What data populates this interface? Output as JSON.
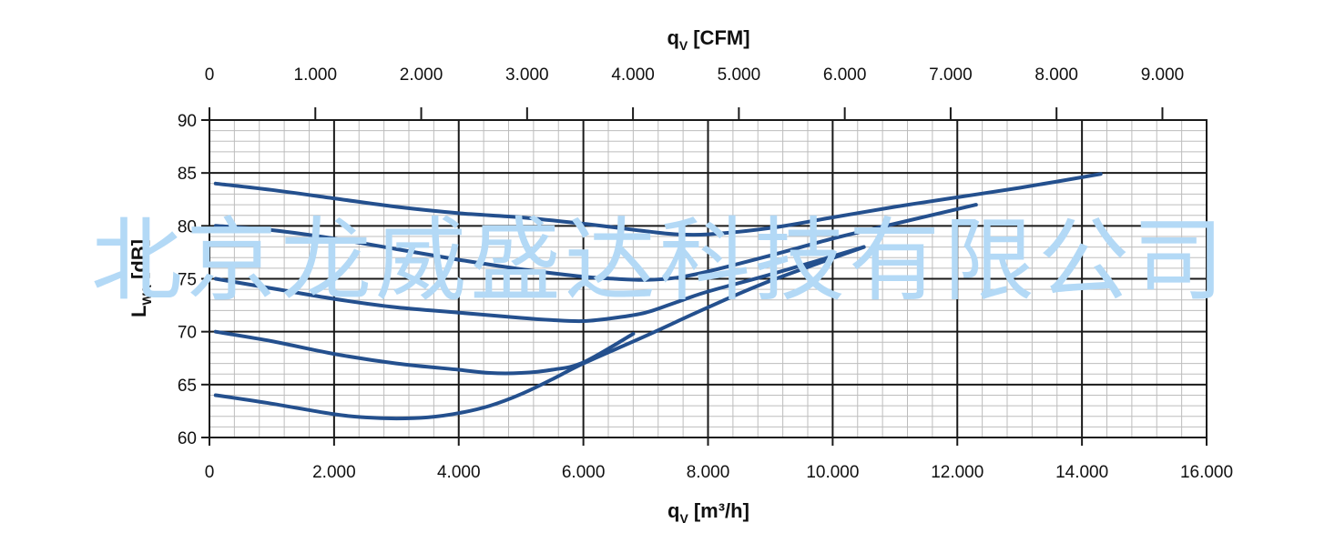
{
  "chart_data": {
    "type": "line",
    "x_axis": {
      "title_main": "q",
      "title_sub": "V",
      "title_unit": "[m³/h]",
      "range": [
        0,
        16000
      ],
      "major_step": 2000,
      "minor_step": 400,
      "ticks": [
        0,
        2000,
        4000,
        6000,
        8000,
        10000,
        12000,
        14000,
        16000
      ],
      "tick_labels": [
        "0",
        "2.000",
        "4.000",
        "6.000",
        "8.000",
        "10.000",
        "12.000",
        "14.000",
        "16.000"
      ]
    },
    "x2_axis": {
      "title_main": "q",
      "title_sub": "V",
      "title_unit": "[CFM]",
      "ticks": [
        0,
        1000,
        2000,
        3000,
        4000,
        5000,
        6000,
        7000,
        8000,
        9000
      ],
      "tick_labels": [
        "0",
        "1.000",
        "2.000",
        "3.000",
        "4.000",
        "5.000",
        "6.000",
        "7.000",
        "8.000",
        "9.000"
      ],
      "m3h_per_cfm": 1.699
    },
    "y_axis": {
      "title_main": "L",
      "title_sub": "WA",
      "title_unit": "[dB]",
      "range": [
        60,
        90
      ],
      "major_step": 5,
      "minor_step": 1,
      "ticks": [
        60,
        65,
        70,
        75,
        80,
        85,
        90
      ],
      "tick_labels": [
        "60",
        "65",
        "70",
        "75",
        "80",
        "85",
        "90"
      ]
    },
    "grid": true,
    "series": [
      {
        "x": [
          100,
          1000,
          2000,
          3000,
          4000,
          5000,
          6000,
          7000,
          7500,
          8000,
          9000,
          10000,
          11000,
          12000,
          13000,
          14300
        ],
        "y": [
          84,
          83.4,
          82.6,
          81.8,
          81.2,
          80.8,
          80.2,
          79.5,
          79.2,
          79.2,
          79.8,
          80.8,
          81.8,
          82.7,
          83.6,
          84.9
        ]
      },
      {
        "x": [
          100,
          1000,
          2000,
          3000,
          4000,
          5000,
          6000,
          6500,
          7000,
          7500,
          8000,
          9000,
          10000,
          11000,
          12300
        ],
        "y": [
          80,
          79.6,
          78.8,
          77.8,
          76.8,
          75.9,
          75.2,
          75,
          74.9,
          75.1,
          75.7,
          77.2,
          78.8,
          80.2,
          82
        ]
      },
      {
        "x": [
          100,
          1000,
          2000,
          3000,
          4000,
          5000,
          5500,
          6000,
          6500,
          7000,
          7500,
          8000,
          9000,
          10500
        ],
        "y": [
          75,
          74.1,
          73.1,
          72.3,
          71.8,
          71.3,
          71.1,
          71,
          71.3,
          71.8,
          72.8,
          73.8,
          75.4,
          78
        ]
      },
      {
        "x": [
          100,
          1000,
          2000,
          3000,
          4000,
          4500,
          5000,
          5500,
          6000,
          6800
        ],
        "y": [
          70,
          69.1,
          67.9,
          67,
          66.4,
          66.1,
          66.1,
          66.4,
          67.1,
          69.8
        ]
      },
      {
        "x": [
          100,
          1000,
          2000,
          2500,
          3000,
          3500,
          4000,
          4500,
          5000,
          5500,
          6000,
          7000,
          8000,
          9000,
          10500
        ],
        "y": [
          64,
          63.2,
          62.2,
          61.9,
          61.8,
          61.9,
          62.3,
          63,
          64.1,
          65.5,
          67,
          69.6,
          72.3,
          74.8,
          78
        ]
      }
    ],
    "colors": {
      "curve": "#24508e",
      "grid_major": "#1a1a1a",
      "grid_minor": "#bdbdbd",
      "watermark": "#b3d9f6"
    }
  },
  "watermark_text": "北京龙威盛达科技有限公司"
}
